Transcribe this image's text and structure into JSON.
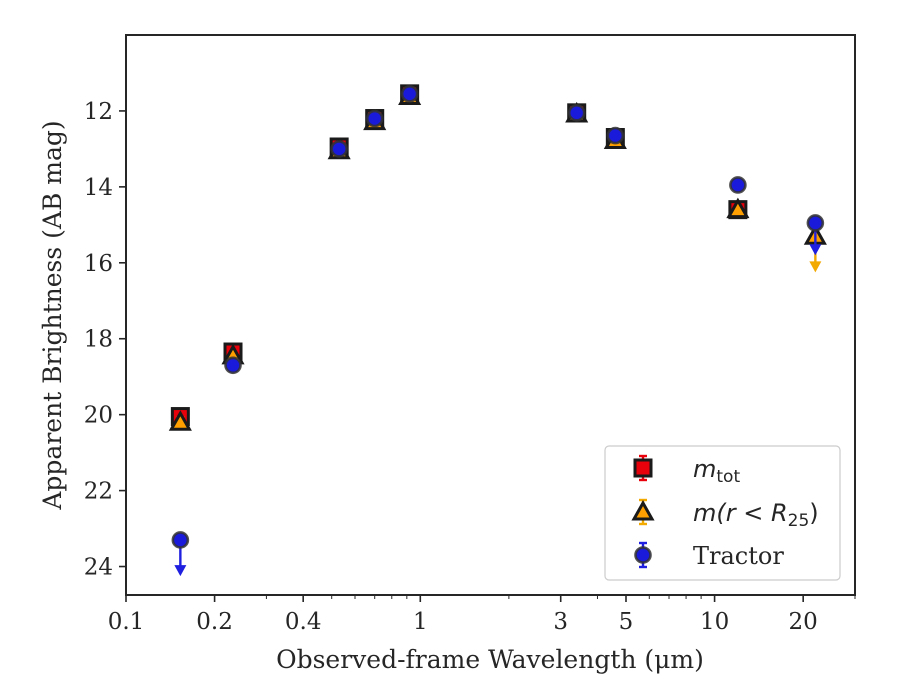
{
  "chart_data": {
    "type": "scatter",
    "title": "",
    "xlabel": "Observed-frame Wavelength (μm)",
    "ylabel": "Apparent Brightness (AB mag)",
    "xscale": "log",
    "xlim": [
      0.1,
      30
    ],
    "ylim": [
      24.75,
      10.0
    ],
    "y_inverted": true,
    "grid": false,
    "legend_position": "lower-right",
    "x_ticks": [
      0.1,
      0.2,
      0.4,
      1,
      3,
      5,
      10,
      20
    ],
    "x_tick_labels": [
      "0.1",
      "0.2",
      "0.4",
      "1",
      "3",
      "5",
      "10",
      "20"
    ],
    "y_ticks": [
      12,
      14,
      16,
      18,
      20,
      22,
      24
    ],
    "y_tick_labels": [
      "12",
      "14",
      "16",
      "18",
      "20",
      "22",
      "24"
    ],
    "legend": [
      {
        "key": "mtot",
        "text": "m",
        "sub": "tot",
        "style": "math"
      },
      {
        "key": "mr25",
        "text": "m(r < R",
        "sub": "25",
        "suffix": ")",
        "style": "math"
      },
      {
        "key": "tractor",
        "text": "Tractor",
        "style": "serif"
      }
    ],
    "series": [
      {
        "key": "mtot",
        "marker": "square",
        "marker_color": "#e8000b",
        "edge_color": "#1a1a1a",
        "error_color": "#e8000b",
        "points": [
          {
            "x": 0.153,
            "y": 20.05,
            "err": 0.12
          },
          {
            "x": 0.231,
            "y": 18.35,
            "err": 0.06
          },
          {
            "x": 0.53,
            "y": 12.95,
            "err": 0.03
          },
          {
            "x": 0.7,
            "y": 12.2,
            "err": 0.03
          },
          {
            "x": 0.92,
            "y": 11.55,
            "err": 0.03
          },
          {
            "x": 3.4,
            "y": 12.05,
            "err": 0.03
          },
          {
            "x": 4.6,
            "y": 12.7,
            "err": 0.03
          },
          {
            "x": 12.0,
            "y": 14.6,
            "err": 0.05
          },
          {
            "x": 22.0,
            "y": 15.2,
            "err": 0.1,
            "hidden": true
          }
        ]
      },
      {
        "key": "mr25",
        "marker": "triangle",
        "marker_color": "#ff9f00",
        "edge_color": "#1a1a1a",
        "error_color": "#f2a900",
        "points": [
          {
            "x": 0.153,
            "y": 20.2,
            "err": 0.12
          },
          {
            "x": 0.231,
            "y": 18.45,
            "err": 0.06
          },
          {
            "x": 0.53,
            "y": 13.05,
            "err": 0.03
          },
          {
            "x": 0.7,
            "y": 12.28,
            "err": 0.03
          },
          {
            "x": 0.92,
            "y": 11.62,
            "err": 0.03
          },
          {
            "x": 3.4,
            "y": 12.08,
            "err": 0.03
          },
          {
            "x": 4.6,
            "y": 12.78,
            "err": 0.03
          },
          {
            "x": 12.0,
            "y": 14.6,
            "err": 0.05
          },
          {
            "x": 22.0,
            "y": 15.3,
            "err": 0.08,
            "upper_limit": true,
            "limit_to": 16.2
          }
        ]
      },
      {
        "key": "tractor",
        "marker": "circle",
        "marker_color": "#1a1adb",
        "edge_color": "#333333",
        "error_color": "#1f1fe0",
        "points": [
          {
            "x": 0.153,
            "y": 23.3,
            "err": 0.08,
            "upper_limit": true,
            "limit_to": 24.2
          },
          {
            "x": 0.231,
            "y": 18.7,
            "err": 0.06
          },
          {
            "x": 0.53,
            "y": 13.0,
            "err": 0.03
          },
          {
            "x": 0.7,
            "y": 12.2,
            "err": 0.03
          },
          {
            "x": 0.92,
            "y": 11.55,
            "err": 0.03
          },
          {
            "x": 3.4,
            "y": 12.05,
            "err": 0.03
          },
          {
            "x": 4.6,
            "y": 12.65,
            "err": 0.03
          },
          {
            "x": 12.0,
            "y": 13.95,
            "err": 0.03
          },
          {
            "x": 22.0,
            "y": 14.95,
            "err": 0.05,
            "upper_limit": true,
            "limit_to": 15.75
          }
        ]
      }
    ]
  }
}
